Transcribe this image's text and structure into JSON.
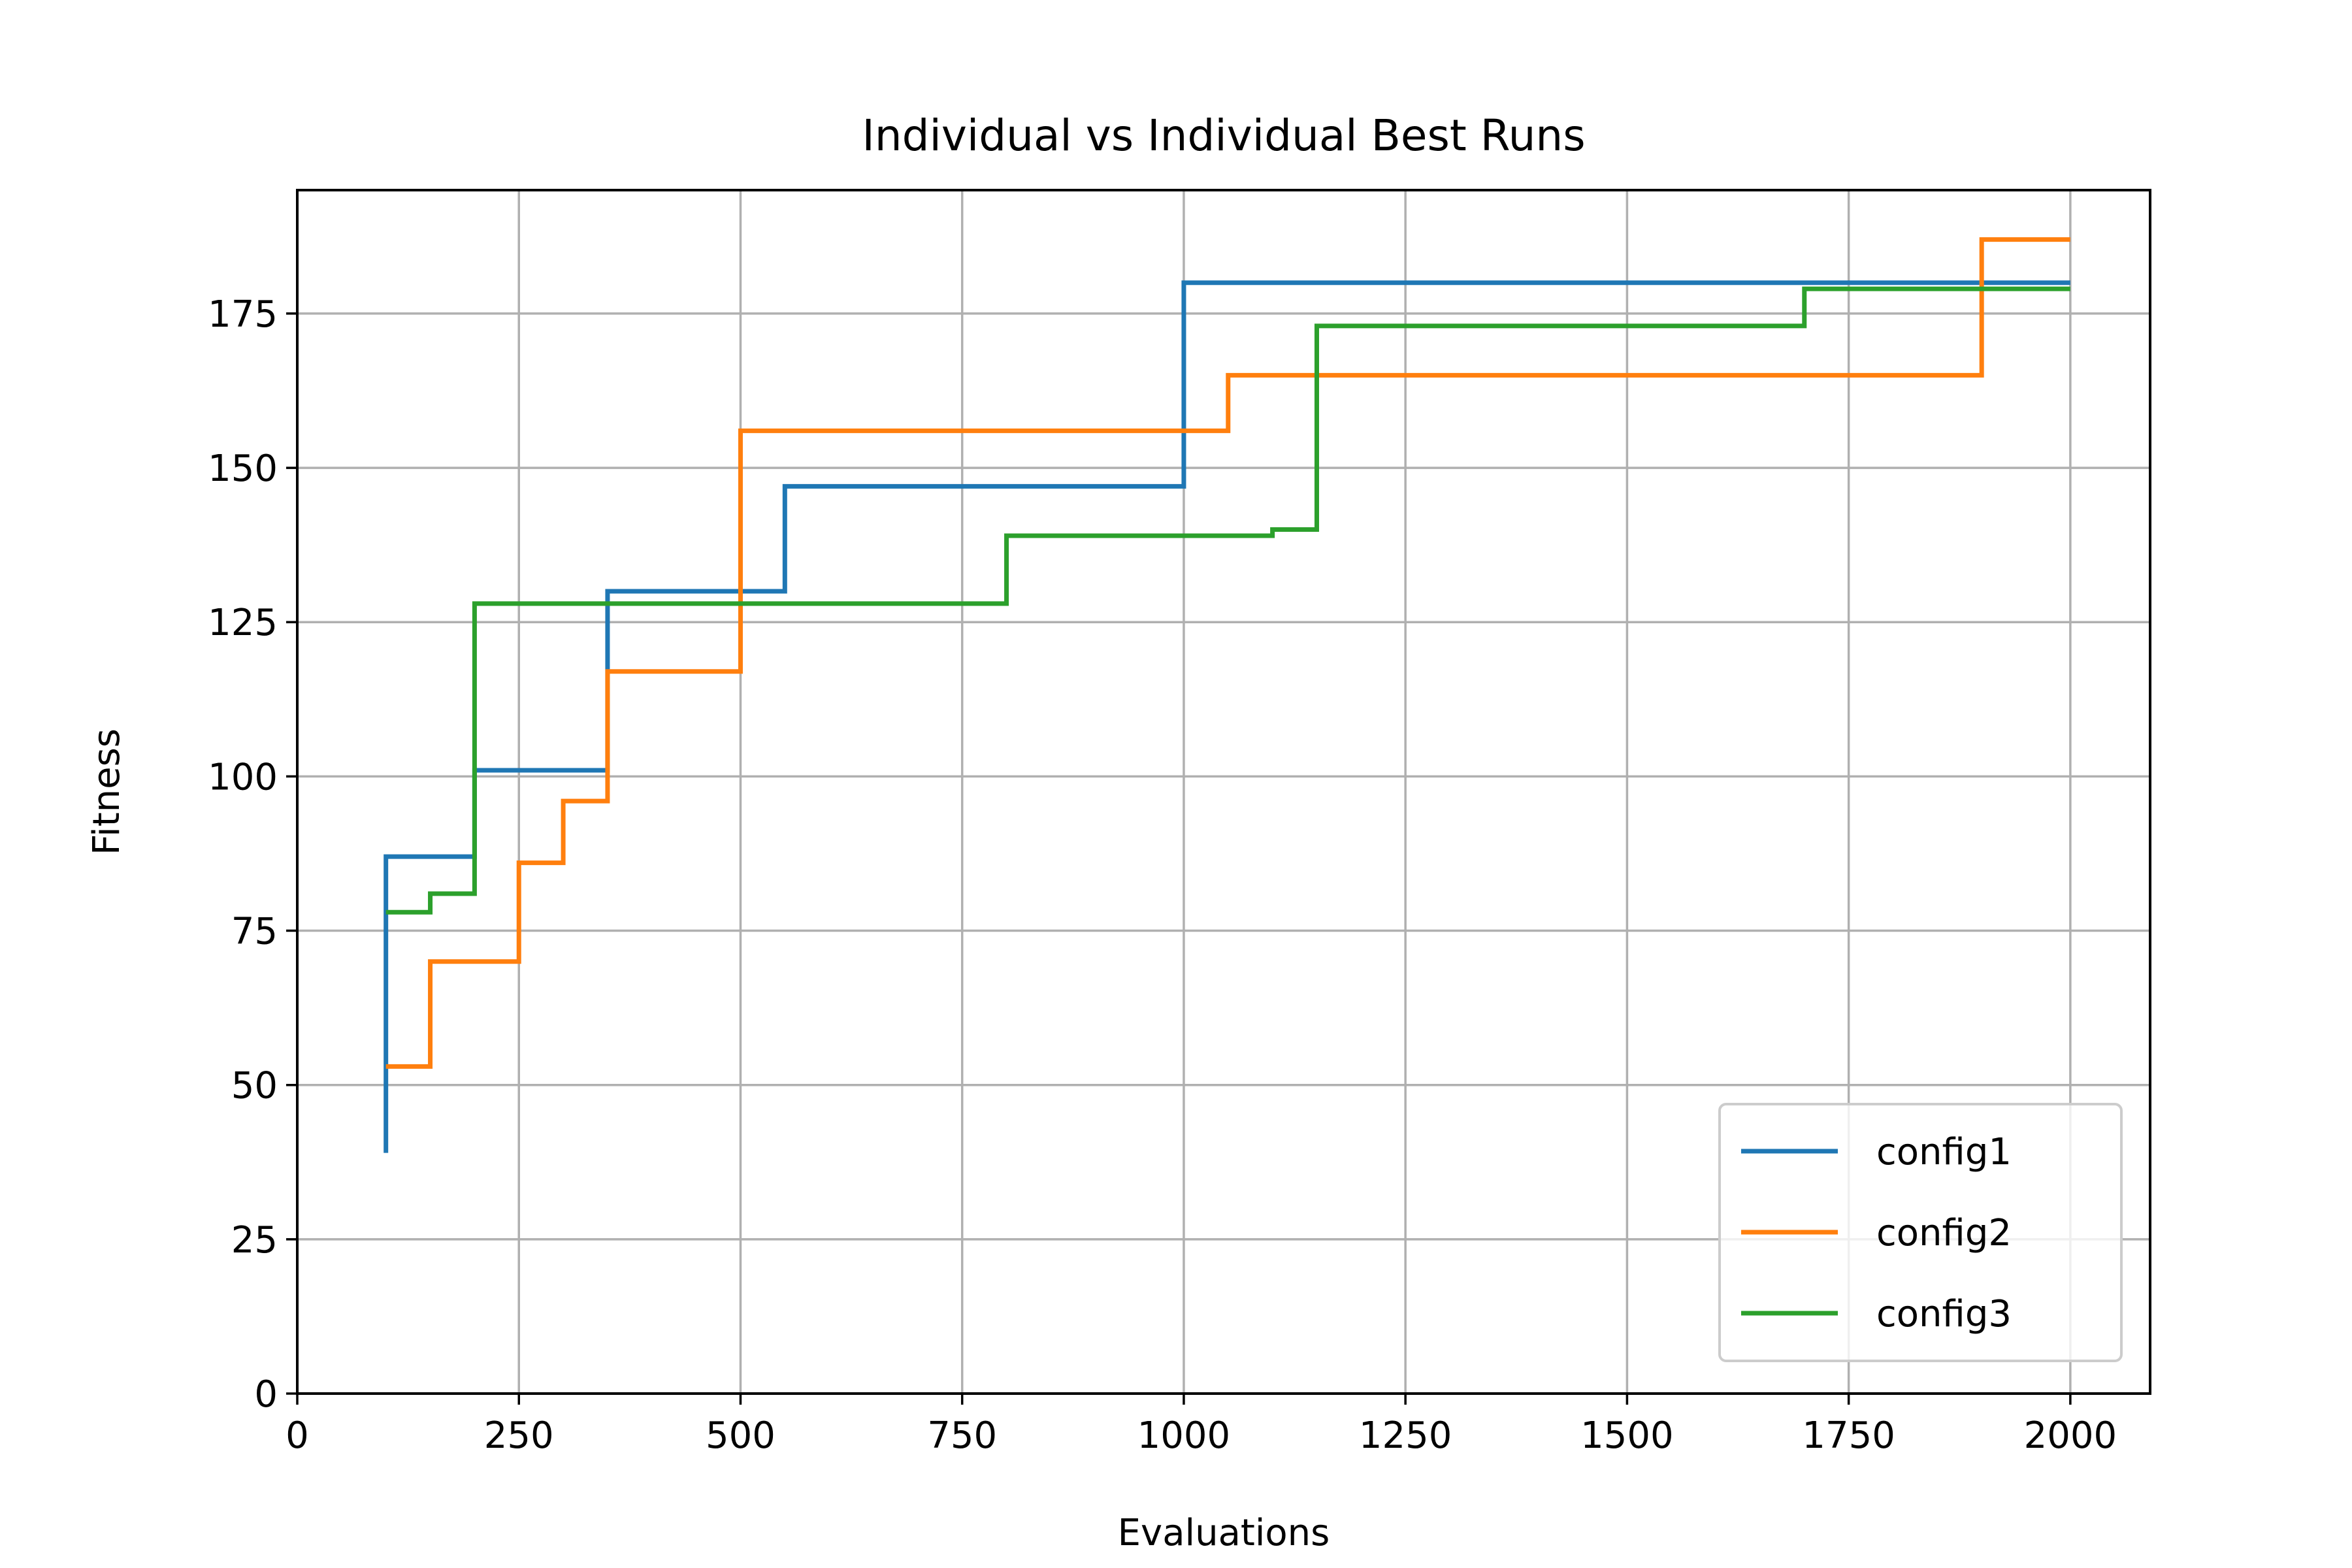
{
  "chart_data": {
    "type": "line",
    "step": "post",
    "title": "Individual vs Individual Best Runs",
    "xlabel": "Evaluations",
    "ylabel": "Fitness",
    "xlim": [
      0,
      2090
    ],
    "ylim": [
      0,
      195
    ],
    "xticks": [
      0,
      250,
      500,
      750,
      1000,
      1250,
      1500,
      1750,
      2000
    ],
    "yticks": [
      0,
      25,
      50,
      75,
      100,
      125,
      150,
      175
    ],
    "grid": true,
    "legend_position": "lower right",
    "series": [
      {
        "name": "config1",
        "color": "#1f77b4",
        "points": [
          [
            100,
            39
          ],
          [
            100,
            87
          ],
          [
            200,
            101
          ],
          [
            350,
            130
          ],
          [
            550,
            147
          ],
          [
            1000,
            180
          ],
          [
            2000,
            180
          ]
        ]
      },
      {
        "name": "config2",
        "color": "#ff7f0e",
        "points": [
          [
            100,
            53
          ],
          [
            150,
            70
          ],
          [
            250,
            86
          ],
          [
            300,
            96
          ],
          [
            350,
            117
          ],
          [
            500,
            156
          ],
          [
            1050,
            165
          ],
          [
            1900,
            187
          ],
          [
            2000,
            187
          ]
        ]
      },
      {
        "name": "config3",
        "color": "#2ca02c",
        "points": [
          [
            100,
            78
          ],
          [
            150,
            81
          ],
          [
            200,
            128
          ],
          [
            800,
            139
          ],
          [
            1100,
            140
          ],
          [
            1150,
            173
          ],
          [
            1700,
            179
          ],
          [
            2000,
            179
          ]
        ]
      }
    ]
  }
}
